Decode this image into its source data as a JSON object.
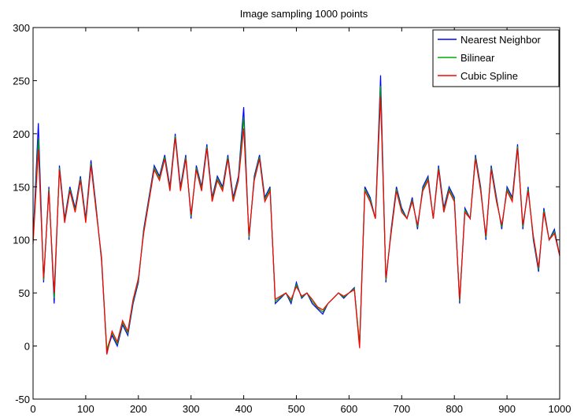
{
  "chart_data": {
    "type": "line",
    "title": "Image sampling 1000 points",
    "xlabel": "",
    "ylabel": "",
    "xlim": [
      0,
      1000
    ],
    "ylim": [
      -50,
      300
    ],
    "x_ticks": [
      0,
      100,
      200,
      300,
      400,
      500,
      600,
      700,
      800,
      900,
      1000
    ],
    "y_ticks": [
      -50,
      0,
      50,
      100,
      150,
      200,
      250,
      300
    ],
    "grid": false,
    "legend_position": "top-right",
    "x": [
      0,
      10,
      20,
      30,
      40,
      50,
      60,
      70,
      80,
      90,
      100,
      110,
      120,
      130,
      140,
      150,
      160,
      170,
      180,
      190,
      200,
      210,
      220,
      230,
      240,
      250,
      260,
      270,
      280,
      290,
      300,
      310,
      320,
      330,
      340,
      350,
      360,
      370,
      380,
      390,
      400,
      410,
      420,
      430,
      440,
      450,
      460,
      470,
      480,
      490,
      500,
      510,
      520,
      530,
      540,
      550,
      560,
      570,
      580,
      590,
      600,
      610,
      620,
      630,
      640,
      650,
      660,
      670,
      680,
      690,
      700,
      710,
      720,
      730,
      740,
      750,
      760,
      770,
      780,
      790,
      800,
      810,
      820,
      830,
      840,
      850,
      860,
      870,
      880,
      890,
      900,
      910,
      920,
      930,
      940,
      950,
      960,
      970,
      980,
      990,
      1000
    ],
    "series": [
      {
        "name": "Nearest Neighbor",
        "color": "#0000ff",
        "values": [
          100,
          210,
          60,
          150,
          40,
          170,
          120,
          150,
          130,
          160,
          120,
          175,
          130,
          80,
          -5,
          10,
          0,
          20,
          10,
          40,
          60,
          110,
          140,
          170,
          160,
          180,
          150,
          200,
          150,
          180,
          120,
          170,
          150,
          190,
          140,
          160,
          150,
          180,
          140,
          160,
          225,
          100,
          160,
          180,
          140,
          150,
          40,
          45,
          50,
          40,
          60,
          45,
          50,
          40,
          35,
          30,
          40,
          45,
          50,
          45,
          50,
          55,
          0,
          150,
          140,
          120,
          255,
          60,
          110,
          150,
          130,
          120,
          140,
          110,
          150,
          160,
          120,
          170,
          130,
          150,
          140,
          40,
          130,
          120,
          180,
          150,
          100,
          170,
          140,
          110,
          150,
          140,
          190,
          110,
          150,
          100,
          70,
          130,
          100,
          110,
          85
        ]
      },
      {
        "name": "Bilinear",
        "color": "#00aa00",
        "values": [
          98,
          195,
          62,
          148,
          45,
          168,
          118,
          148,
          128,
          158,
          118,
          172,
          128,
          82,
          -3,
          12,
          2,
          22,
          12,
          42,
          62,
          108,
          138,
          168,
          158,
          178,
          148,
          198,
          148,
          178,
          122,
          168,
          148,
          188,
          138,
          158,
          148,
          178,
          138,
          158,
          215,
          102,
          158,
          178,
          138,
          148,
          42,
          46,
          50,
          42,
          58,
          46,
          50,
          42,
          36,
          32,
          40,
          45,
          50,
          46,
          50,
          54,
          2,
          148,
          138,
          120,
          245,
          62,
          108,
          148,
          128,
          120,
          138,
          112,
          148,
          158,
          120,
          168,
          128,
          148,
          138,
          42,
          128,
          120,
          178,
          148,
          102,
          168,
          138,
          112,
          148,
          138,
          188,
          112,
          148,
          102,
          72,
          128,
          100,
          108,
          85
        ]
      },
      {
        "name": "Cubic Spline",
        "color": "#ff0000",
        "values": [
          96,
          185,
          64,
          146,
          50,
          166,
          116,
          146,
          126,
          156,
          116,
          170,
          126,
          84,
          -8,
          14,
          4,
          24,
          14,
          44,
          64,
          106,
          136,
          166,
          156,
          176,
          146,
          196,
          146,
          176,
          124,
          166,
          146,
          186,
          136,
          156,
          146,
          176,
          136,
          156,
          205,
          104,
          156,
          176,
          136,
          146,
          44,
          47,
          50,
          44,
          56,
          47,
          50,
          44,
          37,
          34,
          40,
          45,
          50,
          47,
          50,
          53,
          -2,
          146,
          136,
          120,
          235,
          64,
          106,
          146,
          126,
          120,
          136,
          114,
          146,
          156,
          120,
          166,
          126,
          146,
          136,
          44,
          126,
          120,
          176,
          146,
          104,
          166,
          136,
          114,
          146,
          136,
          186,
          114,
          146,
          104,
          74,
          126,
          100,
          106,
          85
        ]
      }
    ]
  }
}
